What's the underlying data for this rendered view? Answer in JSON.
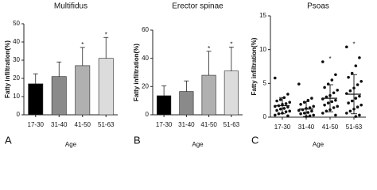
{
  "chart_data": [
    {
      "type": "bar",
      "title": "Multifidus",
      "panel_label": "A",
      "x_label": "Age",
      "y_label": "Fatty infiltration(%)",
      "categories": [
        "17-30",
        "31-40",
        "41-50",
        "51-63"
      ],
      "values": [
        17,
        21,
        27,
        31
      ],
      "errors": [
        5.5,
        8,
        10,
        11.5
      ],
      "colors": [
        "#000000",
        "#8a8a8a",
        "#b0b0b0",
        "#dcdcdc"
      ],
      "significance": [
        null,
        null,
        "*",
        "*"
      ],
      "ylim": [
        0,
        50
      ],
      "yticks": [
        0,
        10,
        20,
        30,
        40,
        50
      ]
    },
    {
      "type": "bar",
      "title": "Erector spinae",
      "panel_label": "B",
      "x_label": "Age",
      "y_label": "Fatty infiltration(%)",
      "categories": [
        "17-30",
        "31-40",
        "41-50",
        "51-63"
      ],
      "values": [
        13.5,
        16.5,
        28,
        31
      ],
      "errors": [
        7,
        7.5,
        17,
        17
      ],
      "colors": [
        "#000000",
        "#8a8a8a",
        "#b0b0b0",
        "#dcdcdc"
      ],
      "significance": [
        null,
        null,
        "*",
        "*"
      ],
      "ylim": [
        0,
        60
      ],
      "yticks": [
        0,
        20,
        40,
        60
      ]
    },
    {
      "type": "strip",
      "title": "Psoas",
      "panel_label": "C",
      "x_label": "Age",
      "y_label": "Fatty infiltration(%)",
      "categories": [
        "17-30",
        "31-40",
        "41-50",
        "51-63"
      ],
      "values": [
        1.7,
        1.2,
        2.8,
        3.4
      ],
      "errors": [
        1.2,
        1.1,
        2.0,
        2.9
      ],
      "points": [
        [
          5.8,
          3.4,
          2.9,
          2.6,
          2.4,
          2.2,
          2.0,
          1.9,
          1.7,
          1.6,
          1.5,
          1.3,
          1.2,
          1.0,
          0.9,
          0.8,
          0.6,
          0.5,
          0.3,
          0.2
        ],
        [
          4.9,
          2.8,
          2.5,
          2.2,
          1.9,
          1.6,
          1.4,
          1.3,
          1.1,
          1.0,
          0.9,
          0.7,
          0.6,
          0.5,
          0.3,
          0.2,
          0.1
        ],
        [
          8.2,
          6.3,
          5.5,
          4.9,
          4.4,
          4.0,
          3.6,
          3.2,
          3.0,
          2.7,
          2.5,
          2.3,
          2.1,
          1.8,
          1.6,
          1.4,
          1.1,
          0.9,
          0.6,
          0.3
        ],
        [
          10.4,
          8.8,
          7.6,
          6.5,
          5.9,
          5.3,
          4.8,
          4.3,
          3.9,
          3.5,
          3.1,
          2.8,
          2.4,
          2.1,
          1.8,
          1.5,
          1.2,
          0.9,
          0.6,
          0.3,
          0.1
        ]
      ],
      "color": "#111111",
      "significance": [
        null,
        null,
        "*",
        "*"
      ],
      "ylim": [
        0,
        15
      ],
      "yticks": [
        0,
        5,
        10,
        15
      ]
    }
  ]
}
